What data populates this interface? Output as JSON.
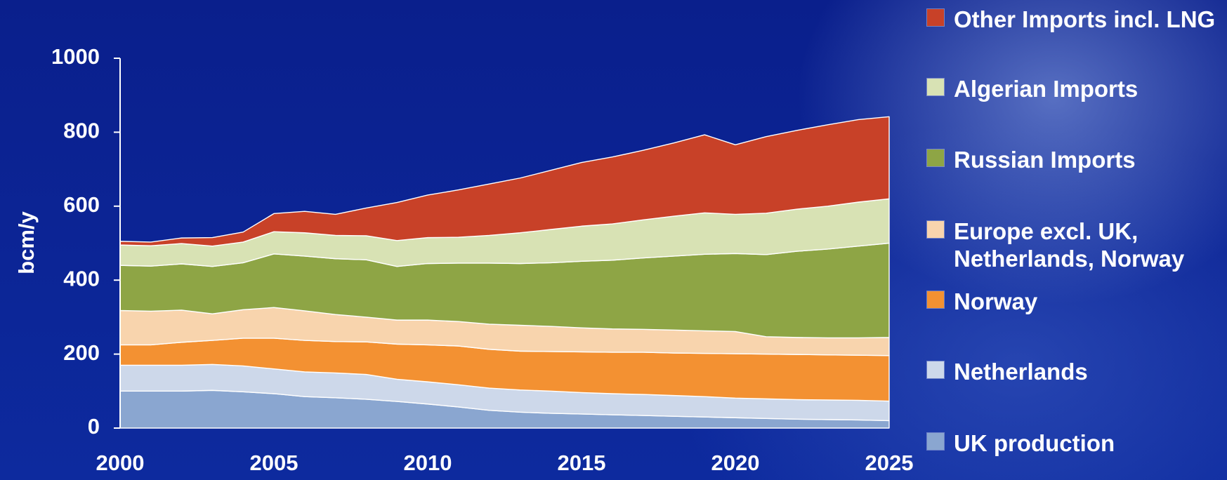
{
  "chart_data": {
    "type": "area",
    "stacked": true,
    "x": [
      2000,
      2001,
      2002,
      2003,
      2004,
      2005,
      2006,
      2007,
      2008,
      2009,
      2010,
      2011,
      2012,
      2013,
      2014,
      2015,
      2016,
      2017,
      2018,
      2019,
      2020,
      2021,
      2022,
      2023,
      2024,
      2025
    ],
    "series": [
      {
        "name": "UK production",
        "color": "#8aa6d0",
        "values": [
          100,
          100,
          100,
          102,
          98,
          93,
          85,
          82,
          78,
          72,
          65,
          57,
          48,
          43,
          40,
          38,
          36,
          34,
          32,
          30,
          28,
          26,
          24,
          23,
          22,
          20
        ]
      },
      {
        "name": "Netherlands",
        "color": "#cdd8ea",
        "values": [
          70,
          70,
          70,
          70,
          70,
          67,
          67,
          67,
          67,
          60,
          60,
          60,
          60,
          60,
          60,
          58,
          57,
          57,
          56,
          55,
          53,
          53,
          53,
          53,
          53,
          53
        ]
      },
      {
        "name": "Norway",
        "color": "#f39132",
        "values": [
          55,
          55,
          62,
          65,
          75,
          83,
          85,
          85,
          88,
          95,
          100,
          105,
          105,
          105,
          107,
          110,
          112,
          114,
          115,
          117,
          120,
          121,
          122,
          122,
          122,
          123
        ]
      },
      {
        "name": "Europe excl. UK, Netherlands, Norway",
        "color": "#f8d4ad",
        "values": [
          93,
          91,
          87,
          72,
          77,
          83,
          80,
          73,
          67,
          65,
          67,
          66,
          68,
          70,
          68,
          65,
          63,
          62,
          62,
          61,
          60,
          47,
          46,
          46,
          47,
          49
        ]
      },
      {
        "name": "Russian Imports",
        "color": "#8ea545",
        "values": [
          122,
          122,
          125,
          128,
          127,
          145,
          148,
          151,
          155,
          145,
          153,
          158,
          165,
          167,
          172,
          180,
          186,
          193,
          200,
          207,
          211,
          222,
          233,
          240,
          248,
          255
        ]
      },
      {
        "name": "Algerian Imports",
        "color": "#d8e2b4",
        "values": [
          55,
          55,
          55,
          55,
          56,
          60,
          63,
          63,
          65,
          70,
          70,
          70,
          75,
          83,
          90,
          95,
          98,
          103,
          108,
          112,
          106,
          112,
          114,
          116,
          119,
          120
        ]
      },
      {
        "name": "Other Imports incl. LNG",
        "color": "#c84128",
        "values": [
          10,
          10,
          15,
          23,
          27,
          49,
          58,
          57,
          75,
          103,
          115,
          128,
          139,
          148,
          160,
          172,
          181,
          188,
          198,
          211,
          188,
          207,
          213,
          220,
          223,
          222
        ]
      }
    ],
    "ylabel": "bcm/y",
    "ylim": [
      0,
      1000
    ],
    "xlim": [
      2000,
      2025
    ],
    "yticks": [
      0,
      200,
      400,
      600,
      800,
      1000
    ],
    "xticks": [
      2000,
      2005,
      2010,
      2015,
      2020,
      2025
    ],
    "grid": false,
    "legend_position": "right",
    "legend_order": [
      "Other Imports incl. LNG",
      "Algerian Imports",
      "Russian Imports",
      "Europe excl. UK, Netherlands, Norway",
      "Norway",
      "Netherlands",
      "UK production"
    ]
  },
  "legend": {
    "items": [
      {
        "label": "Other Imports incl. LNG",
        "color": "#c84128"
      },
      {
        "label": "Algerian Imports",
        "color": "#d8e2b4"
      },
      {
        "label": "Russian Imports",
        "color": "#8ea545"
      },
      {
        "label": "Europe excl. UK, Netherlands, Norway",
        "color": "#f8d4ad"
      },
      {
        "label": "Norway",
        "color": "#f39132"
      },
      {
        "label": "Netherlands",
        "color": "#cdd8ea"
      },
      {
        "label": "UK production",
        "color": "#8aa6d0"
      }
    ]
  }
}
